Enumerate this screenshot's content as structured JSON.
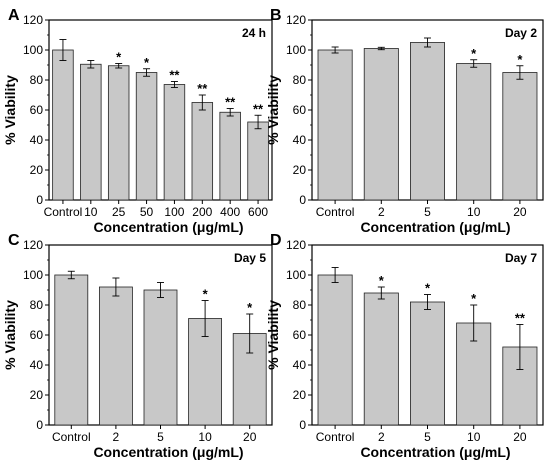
{
  "chart_data": [
    {
      "type": "bar",
      "panel_letter": "A",
      "panel_title": "24 h",
      "categories": [
        "Control",
        "10",
        "25",
        "50",
        "100",
        "200",
        "400",
        "600"
      ],
      "values": [
        100,
        90.5,
        89.5,
        85,
        77,
        65,
        58.5,
        52
      ],
      "errors": [
        7,
        2.5,
        1.5,
        2.5,
        2,
        5,
        2.5,
        4.5
      ],
      "significance": [
        "",
        "",
        "*",
        "*",
        "**",
        "**",
        "**",
        "**"
      ],
      "xlabel": "Concentration (μg/mL)",
      "ylabel": "% Viability",
      "ylim": [
        0,
        120
      ],
      "yticks": [
        0,
        20,
        40,
        60,
        80,
        100,
        120
      ],
      "grid": false,
      "colors": {
        "bar_fill": "#c8c8c8",
        "bar_stroke": "#222222",
        "axis": "#000000"
      }
    },
    {
      "type": "bar",
      "panel_letter": "B",
      "panel_title": "Day 2",
      "categories": [
        "Control",
        "2",
        "5",
        "10",
        "20"
      ],
      "values": [
        100,
        101,
        105,
        91,
        85
      ],
      "errors": [
        2,
        0.8,
        3,
        2.5,
        4.5
      ],
      "significance": [
        "",
        "",
        "",
        "*",
        "*"
      ],
      "xlabel": "Concentration (μg/mL)",
      "ylabel": "% Viability",
      "ylim": [
        0,
        120
      ],
      "yticks": [
        0,
        20,
        40,
        60,
        80,
        100,
        120
      ],
      "grid": false,
      "colors": {
        "bar_fill": "#c8c8c8",
        "bar_stroke": "#222222",
        "axis": "#000000"
      }
    },
    {
      "type": "bar",
      "panel_letter": "C",
      "panel_title": "Day 5",
      "categories": [
        "Control",
        "2",
        "5",
        "10",
        "20"
      ],
      "values": [
        100,
        92,
        90,
        71,
        61
      ],
      "errors": [
        2.5,
        6,
        5,
        12,
        13
      ],
      "significance": [
        "",
        "",
        "",
        "*",
        "*"
      ],
      "xlabel": "Concentration (μg/mL)",
      "ylabel": "% Viability",
      "ylim": [
        0,
        120
      ],
      "yticks": [
        0,
        20,
        40,
        60,
        80,
        100,
        120
      ],
      "grid": false,
      "colors": {
        "bar_fill": "#c8c8c8",
        "bar_stroke": "#222222",
        "axis": "#000000"
      }
    },
    {
      "type": "bar",
      "panel_letter": "D",
      "panel_title": "Day 7",
      "categories": [
        "Control",
        "2",
        "5",
        "10",
        "20"
      ],
      "values": [
        100,
        88,
        82,
        68,
        52
      ],
      "errors": [
        5,
        4,
        5,
        12,
        15
      ],
      "significance": [
        "",
        "*",
        "*",
        "*",
        "**"
      ],
      "xlabel": "Concentration (μg/mL)",
      "ylabel": "% Viability",
      "ylim": [
        0,
        120
      ],
      "yticks": [
        0,
        20,
        40,
        60,
        80,
        100,
        120
      ],
      "grid": false,
      "colors": {
        "bar_fill": "#c8c8c8",
        "bar_stroke": "#222222",
        "axis": "#000000"
      }
    }
  ]
}
